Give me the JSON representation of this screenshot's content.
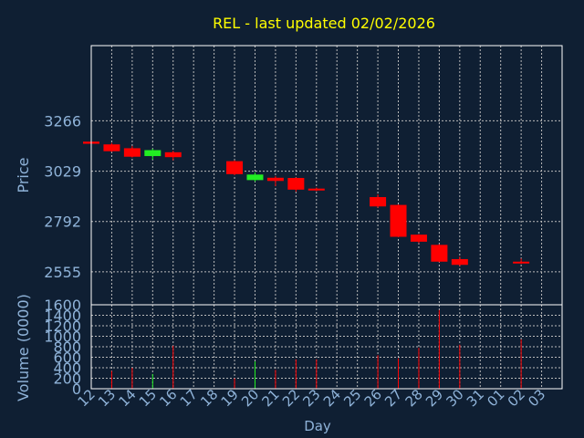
{
  "chart_data": {
    "type": "candlestick",
    "title": "REL - last updated 02/02/2026",
    "xlabel": "Day",
    "price_panel": {
      "ylabel": "Price",
      "yticks": [
        2555,
        2792,
        3029,
        3266
      ],
      "ylim": [
        2400,
        3620
      ]
    },
    "volume_panel": {
      "ylabel": "Volume (0000)",
      "yticks": [
        0,
        200,
        400,
        600,
        800,
        1000,
        1200,
        1400,
        1600
      ],
      "ylim": [
        0,
        1600
      ]
    },
    "x_ticks": [
      "12",
      "13",
      "14",
      "15",
      "16",
      "17",
      "18",
      "19",
      "20",
      "21",
      "22",
      "23",
      "24",
      "25",
      "26",
      "27",
      "28",
      "29",
      "30",
      "31",
      "01",
      "02",
      "03"
    ],
    "candles": [
      {
        "day": "12",
        "open": 3168,
        "high": 3172,
        "low": 3155,
        "close": 3158,
        "volume": 0
      },
      {
        "day": "13",
        "open": 3155,
        "high": 3162,
        "low": 3120,
        "close": 3123,
        "volume": 340
      },
      {
        "day": "14",
        "open": 3137,
        "high": 3148,
        "low": 3093,
        "close": 3097,
        "volume": 400
      },
      {
        "day": "15",
        "open": 3100,
        "high": 3135,
        "low": 3083,
        "close": 3128,
        "volume": 280
      },
      {
        "day": "16",
        "open": 3118,
        "high": 3125,
        "low": 3080,
        "close": 3095,
        "volume": 820
      },
      {
        "day": "19",
        "open": 3076,
        "high": 3080,
        "low": 3010,
        "close": 3015,
        "volume": 200
      },
      {
        "day": "20",
        "open": 2987,
        "high": 3023,
        "low": 2980,
        "close": 3013,
        "volume": 520
      },
      {
        "day": "21",
        "open": 2998,
        "high": 3006,
        "low": 2958,
        "close": 2983,
        "volume": 360
      },
      {
        "day": "22",
        "open": 2997,
        "high": 3000,
        "low": 2932,
        "close": 2942,
        "volume": 560
      },
      {
        "day": "23",
        "open": 2947,
        "high": 2952,
        "low": 2935,
        "close": 2938,
        "volume": 560
      },
      {
        "day": "26",
        "open": 2907,
        "high": 2920,
        "low": 2857,
        "close": 2863,
        "volume": 640
      },
      {
        "day": "27",
        "open": 2870,
        "high": 2872,
        "low": 2718,
        "close": 2720,
        "volume": 580
      },
      {
        "day": "28",
        "open": 2730,
        "high": 2733,
        "low": 2690,
        "close": 2697,
        "volume": 780
      },
      {
        "day": "29",
        "open": 2682,
        "high": 2685,
        "low": 2600,
        "close": 2603,
        "volume": 1500
      },
      {
        "day": "30",
        "open": 2615,
        "high": 2627,
        "low": 2582,
        "close": 2588,
        "volume": 840
      },
      {
        "day": "02",
        "open": 2603,
        "high": 2618,
        "low": 2592,
        "close": 2598,
        "volume": 940
      }
    ],
    "colors": {
      "up": "#22ee22",
      "down": "#ff0000",
      "title": "#ffff00",
      "axis_text": "#8fb3d9",
      "background": "#0f1f33",
      "frame": "#ffffff",
      "grid": "#bbbbbb"
    }
  }
}
